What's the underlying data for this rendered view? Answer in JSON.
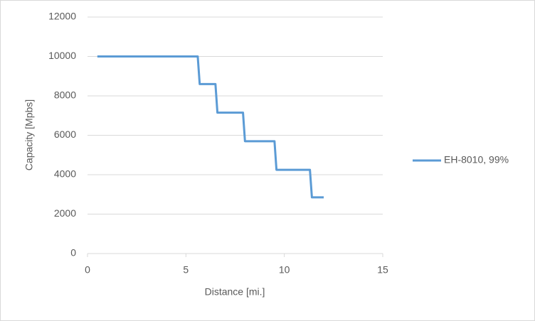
{
  "chart_data": {
    "type": "line",
    "xlabel": "Distance [mi.]",
    "ylabel": "Capacity [Mpbs]",
    "x": [
      0.5,
      5.6,
      5.7,
      6.5,
      6.6,
      7.9,
      8.0,
      9.5,
      9.6,
      11.3,
      11.4,
      12.0
    ],
    "series": [
      {
        "name": "EH-8010, 99%",
        "color": "#5b9bd5",
        "values": [
          10000,
          10000,
          8600,
          8600,
          7150,
          7150,
          5700,
          5700,
          4250,
          4250,
          2850,
          2850
        ]
      }
    ],
    "xlim": [
      0,
      15
    ],
    "xticks": [
      0,
      5,
      10,
      15
    ],
    "ylim": [
      0,
      12000
    ],
    "yticks": [
      0,
      2000,
      4000,
      6000,
      8000,
      10000,
      12000
    ],
    "grid": true,
    "legend": "right"
  }
}
